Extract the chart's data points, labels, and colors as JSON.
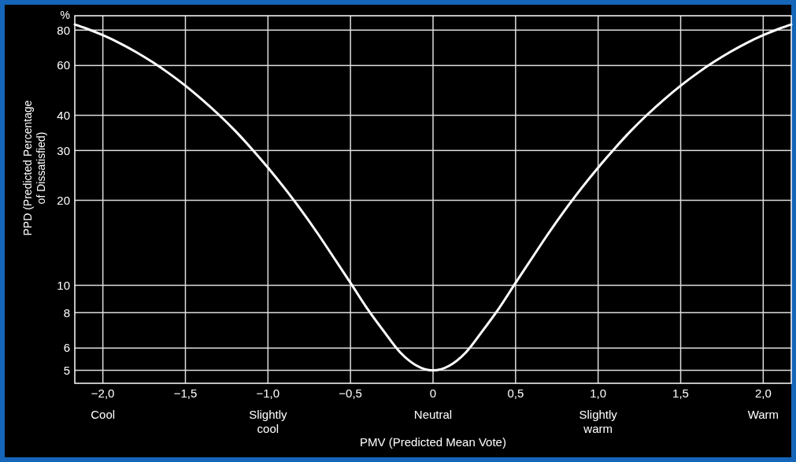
{
  "chart_data": {
    "type": "line",
    "xlabel": "PMV (Predicted Mean Vote)",
    "ylabel": "PPD (Predicted Percentage\nof Dissatisfied)",
    "x": [
      -2.17,
      -2.1,
      -2.0,
      -1.9,
      -1.8,
      -1.7,
      -1.6,
      -1.5,
      -1.4,
      -1.3,
      -1.2,
      -1.1,
      -1.0,
      -0.9,
      -0.8,
      -0.7,
      -0.6,
      -0.5,
      -0.4,
      -0.3,
      -0.2,
      -0.1,
      0,
      0.1,
      0.2,
      0.3,
      0.4,
      0.5,
      0.6,
      0.7,
      0.8,
      0.9,
      1.0,
      1.1,
      1.2,
      1.3,
      1.4,
      1.5,
      1.6,
      1.7,
      1.8,
      1.9,
      2.0,
      2.1,
      2.17
    ],
    "series": [
      {
        "color": "#ffffff",
        "values": [
          83.8,
          81.1,
          76.8,
          72.1,
          67.0,
          61.7,
          56.3,
          50.9,
          45.5,
          40.3,
          35.3,
          30.5,
          26.1,
          22.1,
          18.5,
          15.3,
          12.5,
          10.2,
          8.3,
          6.9,
          5.8,
          5.2,
          5.0,
          5.2,
          5.8,
          6.9,
          8.3,
          10.2,
          12.5,
          15.3,
          18.5,
          22.1,
          26.1,
          30.5,
          35.3,
          40.3,
          45.5,
          50.9,
          56.3,
          61.7,
          67.0,
          72.1,
          76.8,
          81.1,
          83.8
        ]
      }
    ],
    "xlim": [
      -2.17,
      2.17
    ],
    "xticks": [
      {
        "value": -2,
        "label": "−2,0"
      },
      {
        "value": -1.5,
        "label": "−1,5"
      },
      {
        "value": -1,
        "label": "−1,0"
      },
      {
        "value": -0.5,
        "label": "−0,5"
      },
      0,
      {
        "value": 0.5,
        "label": "0,5"
      },
      {
        "value": 1,
        "label": "1,0"
      },
      {
        "value": 1.5,
        "label": "1,5"
      },
      {
        "value": 2,
        "label": "2,0"
      }
    ],
    "ylim": [
      4.5,
      90
    ],
    "yticks": [
      5,
      6,
      8,
      10,
      20,
      30,
      40,
      60,
      80
    ],
    "log": "y",
    "grid": true,
    "marker": "none",
    "line_style": "solid",
    "annotations": [
      "%",
      "Cool",
      "Slightly\ncool",
      "Neutral",
      "Slightly\nwarm",
      "Warm"
    ]
  }
}
